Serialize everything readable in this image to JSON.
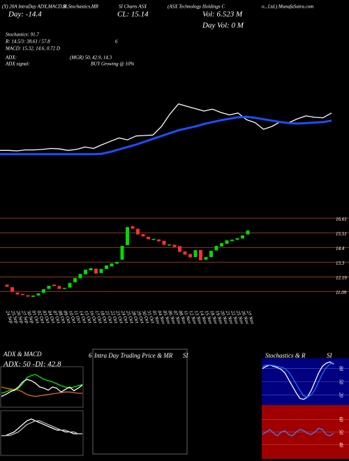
{
  "header": {
    "t1": "(Y) 20A IntraDay ADX,MACD,B",
    "t2": "SI,Stochastics,MR",
    "t3": "SI Charts ASX",
    "t4": "(ASX Technology Holdings C",
    "t5": "o., Ltd.) MunafaSutra.com",
    "day": "Day: -14.4",
    "close": "CL: 15.14",
    "vol": "Vol: 6.523 M",
    "dayvol": "Day Vol: 0   M",
    "stoch": "Stochastics: 91.7",
    "rsi": "R: 14.5/3: 38.61 / 57.8",
    "rsi_n": "6",
    "macd": "MACD: 15.32, 14.6, 0.72  D",
    "adx": "ADX:",
    "adx_vals": "(MGR) 50, 42.9, 14.3",
    "adx_signal": "ADX  signal:",
    "signal": "BUY Growing @ 10%"
  },
  "chart_data": [
    {
      "type": "line",
      "ylim": [
        9.2,
        19.4
      ],
      "series": [
        {
          "color": "#ffffff",
          "values": [
            11.0,
            11.0,
            10.95,
            11.05,
            11.05,
            11.1,
            11.2,
            11.15,
            11.0,
            11.1,
            11.35,
            11.2,
            11.6,
            11.95,
            12.3,
            12.1,
            12.5,
            12.55,
            12.6,
            13.5,
            14.8,
            15.85,
            15.6,
            15.35,
            15.1,
            15.3,
            14.95,
            14.7,
            14.9,
            14.2,
            13.9,
            13.2,
            13.5,
            14.0,
            13.9,
            14.3,
            14.6,
            14.45,
            14.4,
            14.9
          ]
        },
        {
          "color": "#1a4fff",
          "values": [
            10.6,
            10.6,
            10.6,
            10.6,
            10.6,
            10.6,
            10.6,
            10.6,
            10.6,
            10.6,
            10.6,
            10.6,
            10.65,
            10.85,
            11.1,
            11.35,
            11.6,
            11.9,
            12.2,
            12.5,
            12.8,
            13.1,
            13.3,
            13.5,
            13.75,
            13.95,
            14.15,
            14.3,
            14.45,
            14.5,
            14.4,
            14.25,
            14.1,
            13.95,
            13.85,
            13.8,
            13.85,
            13.9,
            13.95,
            14.1
          ]
        }
      ]
    },
    {
      "type": "candlestick",
      "ylim": [
        9.9,
        17.0
      ],
      "yticks": [
        11.09,
        12.19,
        13.3,
        14.4,
        15.51,
        16.61
      ],
      "grid": true,
      "up_color": "#00dd00",
      "down_color": "#ff3030",
      "categories": [
        "24 Sep",
        "25 Sep",
        "26 Sep",
        "27 Sep",
        "30 Sep",
        "01 Oct",
        "02 Oct",
        "03 Oct",
        "04 Oct",
        "07 Oct",
        "08 Oct",
        "09 Oct",
        "10 Oct",
        "11 Oct",
        "14 Oct",
        "15 Oct",
        "16 Oct",
        "17 Oct",
        "18 Oct",
        "21 Oct",
        "22 Oct",
        "23 Oct",
        "24 Oct",
        "25 Oct",
        "28 Oct",
        "29 Oct",
        "30 Oct",
        "31 Oct",
        "01 Nov",
        "04 Nov",
        "05 Nov",
        "06 Nov",
        "07 Nov",
        "08 Nov",
        "11 Nov",
        "12 Nov",
        "13 Nov",
        "14 Nov",
        "15 Nov",
        "18 Nov",
        "19 Nov",
        "20 Nov",
        "21 Nov",
        "22 Nov",
        "25 Nov",
        "26 Nov",
        "27 Nov"
      ],
      "open": [
        11.6,
        11.4,
        11.0,
        10.9,
        10.8,
        10.7,
        10.8,
        11.0,
        11.3,
        11.6,
        11.5,
        11.3,
        11.4,
        11.8,
        12.1,
        12.4,
        12.7,
        12.8,
        12.5,
        12.8,
        13.0,
        13.2,
        13.5,
        14.6,
        16.0,
        15.8,
        15.4,
        15.2,
        15.0,
        15.0,
        14.9,
        14.6,
        14.6,
        14.5,
        14.1,
        13.9,
        13.7,
        14.2,
        13.5,
        13.7,
        14.2,
        14.5,
        14.7,
        14.9,
        15.0,
        15.1,
        15.4
      ],
      "close": [
        11.46,
        11.09,
        10.88,
        10.83,
        10.72,
        10.77,
        10.93,
        11.25,
        11.51,
        11.51,
        11.3,
        11.35,
        11.72,
        12.09,
        12.4,
        12.72,
        12.83,
        12.46,
        12.77,
        13.04,
        13.19,
        13.3,
        14.51,
        15.93,
        15.83,
        15.4,
        15.25,
        15.04,
        15.04,
        14.88,
        14.62,
        14.62,
        14.46,
        14.09,
        13.88,
        13.67,
        14.19,
        13.46,
        13.67,
        14.14,
        14.51,
        14.72,
        14.93,
        14.98,
        15.09,
        15.3,
        15.67
      ]
    },
    {
      "type": "line",
      "title": "ADX  & MACD",
      "subtitle": "ADX: 50  -DI: 42.8",
      "ylim": [
        0,
        60
      ],
      "series": [
        {
          "color": "#00ee00",
          "values": [
            20,
            22,
            25,
            24,
            28,
            35,
            45,
            48,
            50,
            46,
            42,
            40,
            38,
            35,
            32,
            30,
            28,
            30,
            32,
            34
          ]
        },
        {
          "color": "#e07020",
          "values": [
            30,
            28,
            27,
            26,
            25,
            22,
            18,
            16,
            15,
            16,
            17,
            18,
            19,
            20,
            21,
            22,
            22,
            21,
            20,
            20
          ]
        },
        {
          "color": "#ffffff",
          "values": [
            15,
            18,
            22,
            25,
            30,
            38,
            42,
            40,
            36,
            30,
            28,
            25,
            30,
            28,
            22,
            26,
            30,
            24,
            28,
            33
          ]
        }
      ]
    },
    {
      "type": "line",
      "ylim": [
        -10,
        12
      ],
      "series": [
        {
          "color": "#ffffff",
          "values": [
            0,
            0,
            1,
            2,
            4,
            6,
            8,
            9,
            8,
            7,
            6,
            5,
            4,
            3,
            3,
            2,
            2,
            1,
            1,
            1
          ]
        },
        {
          "color": "#bbbbbb",
          "values": [
            0,
            0,
            0,
            1,
            2,
            4,
            6,
            7,
            8,
            8,
            7,
            6,
            5,
            4,
            3,
            3,
            2,
            2,
            1,
            1
          ]
        }
      ]
    },
    {
      "type": "empty",
      "title": "Intra Day Trading Price  & MR",
      "title2": "SI",
      "label": "6"
    },
    {
      "type": "line",
      "title": "Stochastics & R",
      "title2": "SI",
      "ylim": [
        0,
        100
      ],
      "yticks": [
        20,
        50,
        80
      ],
      "background": "#000080",
      "series": [
        {
          "color": "#ffffff",
          "values": [
            80,
            85,
            88,
            85,
            82,
            78,
            70,
            55,
            40,
            25,
            12,
            10,
            15,
            30,
            50,
            70,
            85,
            92,
            95,
            90
          ]
        },
        {
          "color": "#1a6fff",
          "values": [
            85,
            88,
            88,
            87,
            85,
            83,
            80,
            72,
            60,
            45,
            30,
            18,
            15,
            20,
            32,
            50,
            68,
            82,
            90,
            93
          ]
        }
      ]
    },
    {
      "type": "line",
      "ylim": [
        30,
        70
      ],
      "yticks": [
        40,
        50,
        60
      ],
      "background": "#a00000",
      "series": [
        {
          "color": "#3a7fff",
          "values": [
            48,
            50,
            52,
            49,
            47,
            50,
            51,
            48,
            47,
            50,
            52,
            51,
            49,
            48,
            50,
            53,
            52,
            48,
            47,
            49
          ]
        }
      ]
    }
  ]
}
